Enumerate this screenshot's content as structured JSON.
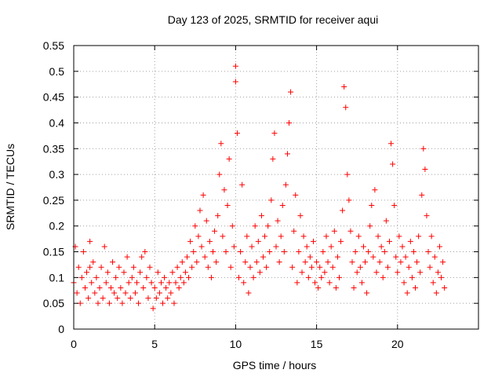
{
  "chart_data": {
    "type": "scatter",
    "title": "Day 123 of 2025, SRMTID for receiver aqui",
    "xlabel": "GPS time / hours",
    "ylabel": "SRMTID / TECUs",
    "xlim": [
      0,
      25
    ],
    "ylim": [
      0,
      0.55
    ],
    "x_ticks": [
      0,
      5,
      10,
      15,
      20
    ],
    "x_tick_labels": [
      "0",
      "5",
      "10",
      "15",
      "20"
    ],
    "y_ticks": [
      0,
      0.05,
      0.1,
      0.15,
      0.2,
      0.25,
      0.3,
      0.35,
      0.4,
      0.45,
      0.5,
      0.55
    ],
    "y_tick_labels": [
      "0",
      "0.05",
      "0.1",
      "0.15",
      "0.2",
      "0.25",
      "0.3",
      "0.35",
      "0.4",
      "0.45",
      "0.5",
      "0.55"
    ],
    "grid": true,
    "marker": "+",
    "marker_color": "#ff0000",
    "points": [
      [
        0.0,
        0.09
      ],
      [
        0.1,
        0.16
      ],
      [
        0.2,
        0.07
      ],
      [
        0.3,
        0.12
      ],
      [
        0.4,
        0.05
      ],
      [
        0.5,
        0.1
      ],
      [
        0.6,
        0.15
      ],
      [
        0.7,
        0.08
      ],
      [
        0.8,
        0.11
      ],
      [
        0.9,
        0.06
      ],
      [
        1.0,
        0.12
      ],
      [
        1.0,
        0.17
      ],
      [
        1.1,
        0.09
      ],
      [
        1.2,
        0.13
      ],
      [
        1.3,
        0.07
      ],
      [
        1.4,
        0.1
      ],
      [
        1.5,
        0.05
      ],
      [
        1.6,
        0.08
      ],
      [
        1.7,
        0.12
      ],
      [
        1.8,
        0.06
      ],
      [
        1.9,
        0.16
      ],
      [
        2.0,
        0.09
      ],
      [
        2.1,
        0.11
      ],
      [
        2.2,
        0.05
      ],
      [
        2.3,
        0.08
      ],
      [
        2.4,
        0.13
      ],
      [
        2.5,
        0.07
      ],
      [
        2.6,
        0.1
      ],
      [
        2.7,
        0.06
      ],
      [
        2.8,
        0.12
      ],
      [
        2.9,
        0.08
      ],
      [
        3.0,
        0.05
      ],
      [
        3.1,
        0.11
      ],
      [
        3.2,
        0.07
      ],
      [
        3.3,
        0.14
      ],
      [
        3.4,
        0.09
      ],
      [
        3.5,
        0.06
      ],
      [
        3.6,
        0.1
      ],
      [
        3.7,
        0.12
      ],
      [
        3.8,
        0.07
      ],
      [
        3.9,
        0.09
      ],
      [
        4.0,
        0.05
      ],
      [
        4.1,
        0.11
      ],
      [
        4.2,
        0.14
      ],
      [
        4.3,
        0.08
      ],
      [
        4.4,
        0.15
      ],
      [
        4.5,
        0.1
      ],
      [
        4.6,
        0.06
      ],
      [
        4.7,
        0.12
      ],
      [
        4.8,
        0.09
      ],
      [
        4.9,
        0.04
      ],
      [
        5.0,
        0.08
      ],
      [
        5.1,
        0.06
      ],
      [
        5.2,
        0.11
      ],
      [
        5.3,
        0.07
      ],
      [
        5.4,
        0.09
      ],
      [
        5.5,
        0.05
      ],
      [
        5.6,
        0.1
      ],
      [
        5.7,
        0.08
      ],
      [
        5.8,
        0.06
      ],
      [
        5.9,
        0.09
      ],
      [
        6.0,
        0.07
      ],
      [
        6.1,
        0.11
      ],
      [
        6.2,
        0.05
      ],
      [
        6.3,
        0.09
      ],
      [
        6.4,
        0.12
      ],
      [
        6.5,
        0.08
      ],
      [
        6.6,
        0.1
      ],
      [
        6.7,
        0.13
      ],
      [
        6.8,
        0.09
      ],
      [
        6.9,
        0.11
      ],
      [
        7.0,
        0.14
      ],
      [
        7.1,
        0.1
      ],
      [
        7.2,
        0.17
      ],
      [
        7.3,
        0.12
      ],
      [
        7.4,
        0.15
      ],
      [
        7.5,
        0.2
      ],
      [
        7.6,
        0.13
      ],
      [
        7.7,
        0.18
      ],
      [
        7.8,
        0.23
      ],
      [
        7.9,
        0.16
      ],
      [
        8.0,
        0.26
      ],
      [
        8.1,
        0.14
      ],
      [
        8.2,
        0.21
      ],
      [
        8.3,
        0.12
      ],
      [
        8.4,
        0.17
      ],
      [
        8.5,
        0.1
      ],
      [
        8.6,
        0.15
      ],
      [
        8.7,
        0.19
      ],
      [
        8.8,
        0.13
      ],
      [
        8.9,
        0.22
      ],
      [
        9.0,
        0.3
      ],
      [
        9.1,
        0.36
      ],
      [
        9.2,
        0.18
      ],
      [
        9.3,
        0.27
      ],
      [
        9.4,
        0.15
      ],
      [
        9.5,
        0.24
      ],
      [
        9.6,
        0.33
      ],
      [
        9.7,
        0.12
      ],
      [
        9.8,
        0.2
      ],
      [
        9.9,
        0.16
      ],
      [
        10.0,
        0.48
      ],
      [
        10.0,
        0.51
      ],
      [
        10.1,
        0.38
      ],
      [
        10.2,
        0.1
      ],
      [
        10.3,
        0.15
      ],
      [
        10.4,
        0.28
      ],
      [
        10.5,
        0.09
      ],
      [
        10.6,
        0.13
      ],
      [
        10.7,
        0.18
      ],
      [
        10.8,
        0.07
      ],
      [
        10.9,
        0.12
      ],
      [
        11.0,
        0.16
      ],
      [
        11.1,
        0.1
      ],
      [
        11.2,
        0.2
      ],
      [
        11.3,
        0.13
      ],
      [
        11.4,
        0.17
      ],
      [
        11.5,
        0.11
      ],
      [
        11.6,
        0.22
      ],
      [
        11.7,
        0.14
      ],
      [
        11.8,
        0.18
      ],
      [
        11.9,
        0.12
      ],
      [
        12.0,
        0.2
      ],
      [
        12.1,
        0.15
      ],
      [
        12.2,
        0.25
      ],
      [
        12.3,
        0.33
      ],
      [
        12.4,
        0.38
      ],
      [
        12.5,
        0.16
      ],
      [
        12.6,
        0.21
      ],
      [
        12.7,
        0.13
      ],
      [
        12.8,
        0.18
      ],
      [
        12.9,
        0.24
      ],
      [
        13.0,
        0.15
      ],
      [
        13.1,
        0.28
      ],
      [
        13.2,
        0.34
      ],
      [
        13.3,
        0.4
      ],
      [
        13.4,
        0.46
      ],
      [
        13.5,
        0.12
      ],
      [
        13.6,
        0.19
      ],
      [
        13.7,
        0.26
      ],
      [
        13.8,
        0.09
      ],
      [
        13.9,
        0.15
      ],
      [
        14.0,
        0.22
      ],
      [
        14.1,
        0.11
      ],
      [
        14.2,
        0.18
      ],
      [
        14.3,
        0.13
      ],
      [
        14.4,
        0.16
      ],
      [
        14.5,
        0.1
      ],
      [
        14.6,
        0.14
      ],
      [
        14.7,
        0.12
      ],
      [
        14.8,
        0.17
      ],
      [
        14.9,
        0.09
      ],
      [
        15.0,
        0.13
      ],
      [
        15.1,
        0.08
      ],
      [
        15.2,
        0.12
      ],
      [
        15.3,
        0.1
      ],
      [
        15.4,
        0.15
      ],
      [
        15.5,
        0.11
      ],
      [
        15.6,
        0.18
      ],
      [
        15.7,
        0.13
      ],
      [
        15.8,
        0.09
      ],
      [
        15.9,
        0.16
      ],
      [
        16.0,
        0.12
      ],
      [
        16.1,
        0.19
      ],
      [
        16.2,
        0.08
      ],
      [
        16.3,
        0.14
      ],
      [
        16.4,
        0.1
      ],
      [
        16.5,
        0.17
      ],
      [
        16.6,
        0.23
      ],
      [
        16.7,
        0.47
      ],
      [
        16.8,
        0.43
      ],
      [
        16.9,
        0.3
      ],
      [
        17.0,
        0.25
      ],
      [
        17.1,
        0.19
      ],
      [
        17.2,
        0.13
      ],
      [
        17.3,
        0.08
      ],
      [
        17.4,
        0.15
      ],
      [
        17.5,
        0.11
      ],
      [
        17.6,
        0.18
      ],
      [
        17.7,
        0.12
      ],
      [
        17.8,
        0.09
      ],
      [
        17.9,
        0.16
      ],
      [
        18.0,
        0.13
      ],
      [
        18.1,
        0.07
      ],
      [
        18.2,
        0.15
      ],
      [
        18.3,
        0.2
      ],
      [
        18.4,
        0.24
      ],
      [
        18.5,
        0.14
      ],
      [
        18.6,
        0.27
      ],
      [
        18.7,
        0.11
      ],
      [
        18.8,
        0.18
      ],
      [
        18.9,
        0.13
      ],
      [
        19.0,
        0.16
      ],
      [
        19.1,
        0.1
      ],
      [
        19.2,
        0.15
      ],
      [
        19.3,
        0.21
      ],
      [
        19.4,
        0.12
      ],
      [
        19.5,
        0.17
      ],
      [
        19.6,
        0.36
      ],
      [
        19.7,
        0.32
      ],
      [
        19.8,
        0.24
      ],
      [
        19.9,
        0.14
      ],
      [
        20.0,
        0.11
      ],
      [
        20.1,
        0.18
      ],
      [
        20.2,
        0.13
      ],
      [
        20.3,
        0.16
      ],
      [
        20.4,
        0.09
      ],
      [
        20.5,
        0.14
      ],
      [
        20.6,
        0.07
      ],
      [
        20.7,
        0.12
      ],
      [
        20.8,
        0.17
      ],
      [
        20.9,
        0.1
      ],
      [
        21.0,
        0.15
      ],
      [
        21.1,
        0.08
      ],
      [
        21.2,
        0.13
      ],
      [
        21.3,
        0.18
      ],
      [
        21.4,
        0.11
      ],
      [
        21.5,
        0.26
      ],
      [
        21.6,
        0.35
      ],
      [
        21.7,
        0.31
      ],
      [
        21.8,
        0.22
      ],
      [
        21.9,
        0.15
      ],
      [
        22.0,
        0.12
      ],
      [
        22.1,
        0.18
      ],
      [
        22.2,
        0.09
      ],
      [
        22.3,
        0.14
      ],
      [
        22.4,
        0.07
      ],
      [
        22.5,
        0.11
      ],
      [
        22.6,
        0.16
      ],
      [
        22.7,
        0.1
      ],
      [
        22.8,
        0.13
      ],
      [
        22.9,
        0.08
      ]
    ]
  }
}
